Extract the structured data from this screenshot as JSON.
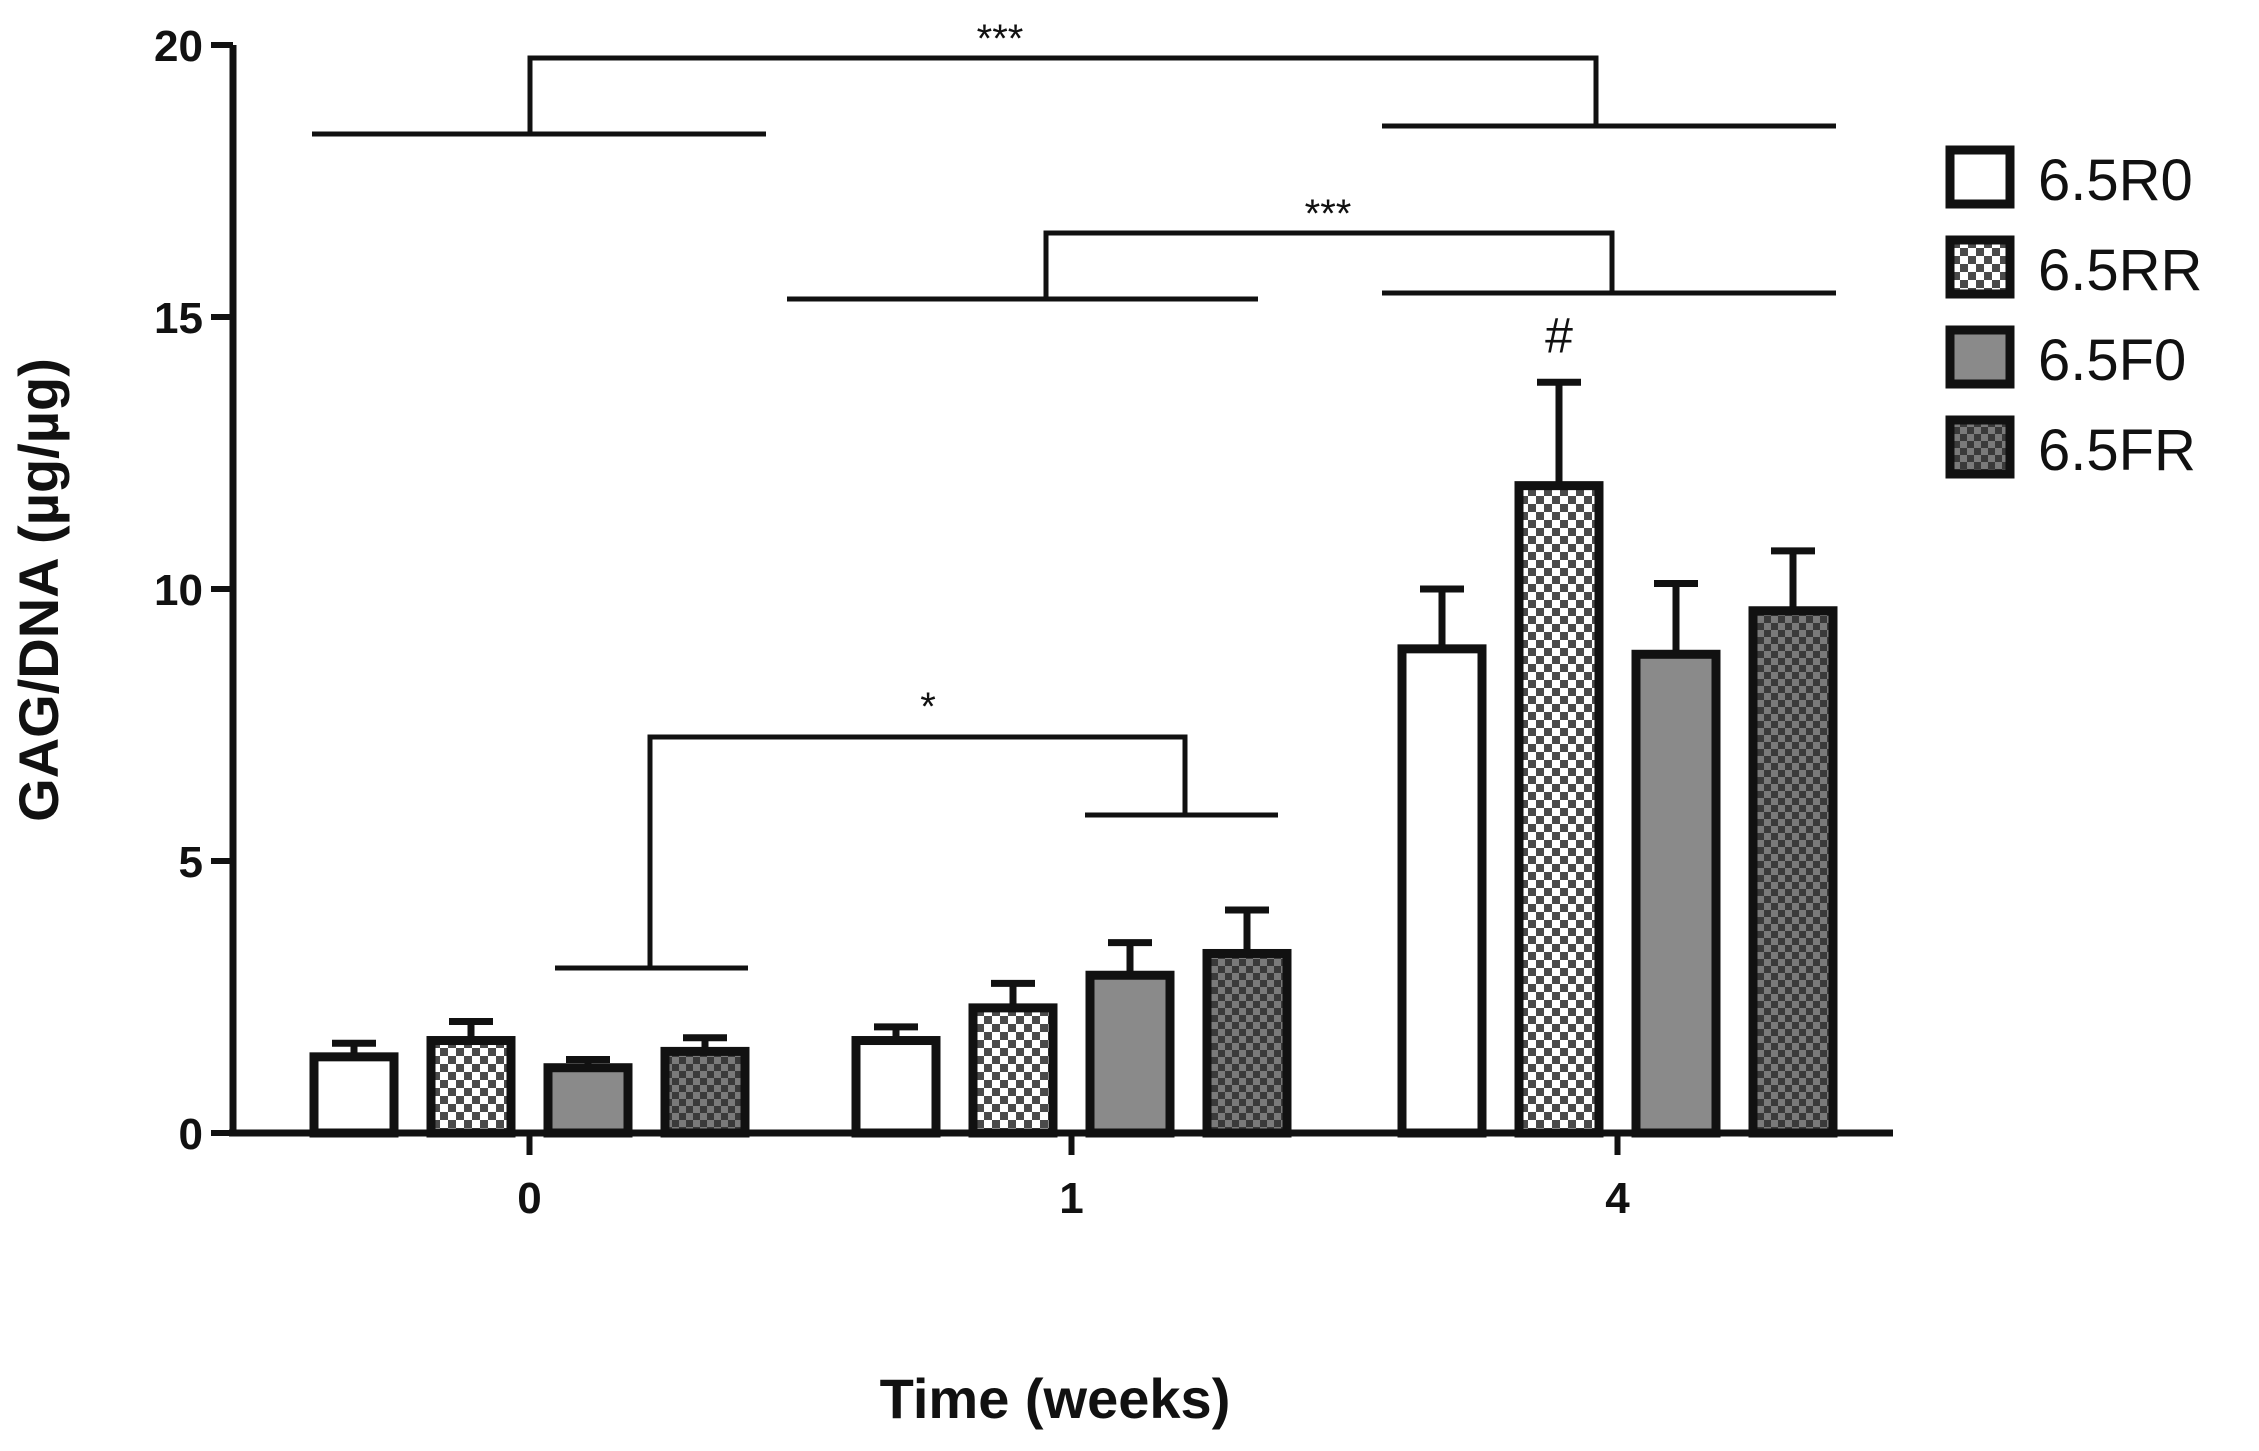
{
  "chart_data": {
    "type": "bar",
    "xlabel": "Time (weeks)",
    "ylabel": "GAG/DNA (µg/µg)",
    "ylim": [
      0,
      20
    ],
    "yticks": [
      "0",
      "5",
      "10",
      "15",
      "20"
    ],
    "grid": false,
    "legend_position": "right",
    "categories": [
      "0",
      "1",
      "4"
    ],
    "series": [
      {
        "name": "6.5R0",
        "pattern": "white",
        "values": [
          1.4,
          1.7,
          8.9
        ],
        "errors": [
          0.25,
          0.25,
          1.1
        ]
      },
      {
        "name": "6.5RR",
        "pattern": "checker",
        "values": [
          1.7,
          2.3,
          11.9
        ],
        "errors": [
          0.35,
          0.45,
          1.9
        ]
      },
      {
        "name": "6.5F0",
        "pattern": "gray",
        "values": [
          1.2,
          2.9,
          8.8
        ],
        "errors": [
          0.15,
          0.6,
          1.3
        ]
      },
      {
        "name": "6.5FR",
        "pattern": "dark-checker",
        "values": [
          1.5,
          3.3,
          9.6
        ],
        "errors": [
          0.25,
          0.8,
          1.1
        ]
      }
    ],
    "annotations": {
      "significance": [
        {
          "label": "***",
          "from": "0",
          "to": "4"
        },
        {
          "label": "***",
          "from": "1",
          "to": "4"
        },
        {
          "label": "*",
          "from": "0",
          "to": "1"
        }
      ],
      "marker": {
        "label": "#",
        "category": "4",
        "series": "6.5RR"
      }
    },
    "colors": {
      "outline": "#111111",
      "white_fill": "#ffffff",
      "gray_fill": "#8a8a8a",
      "checker_light": "#ffffff",
      "checker_dark": "#4a4a4a",
      "dark_checker_a": "#7a7a7a",
      "dark_checker_b": "#3a3a3a"
    }
  }
}
